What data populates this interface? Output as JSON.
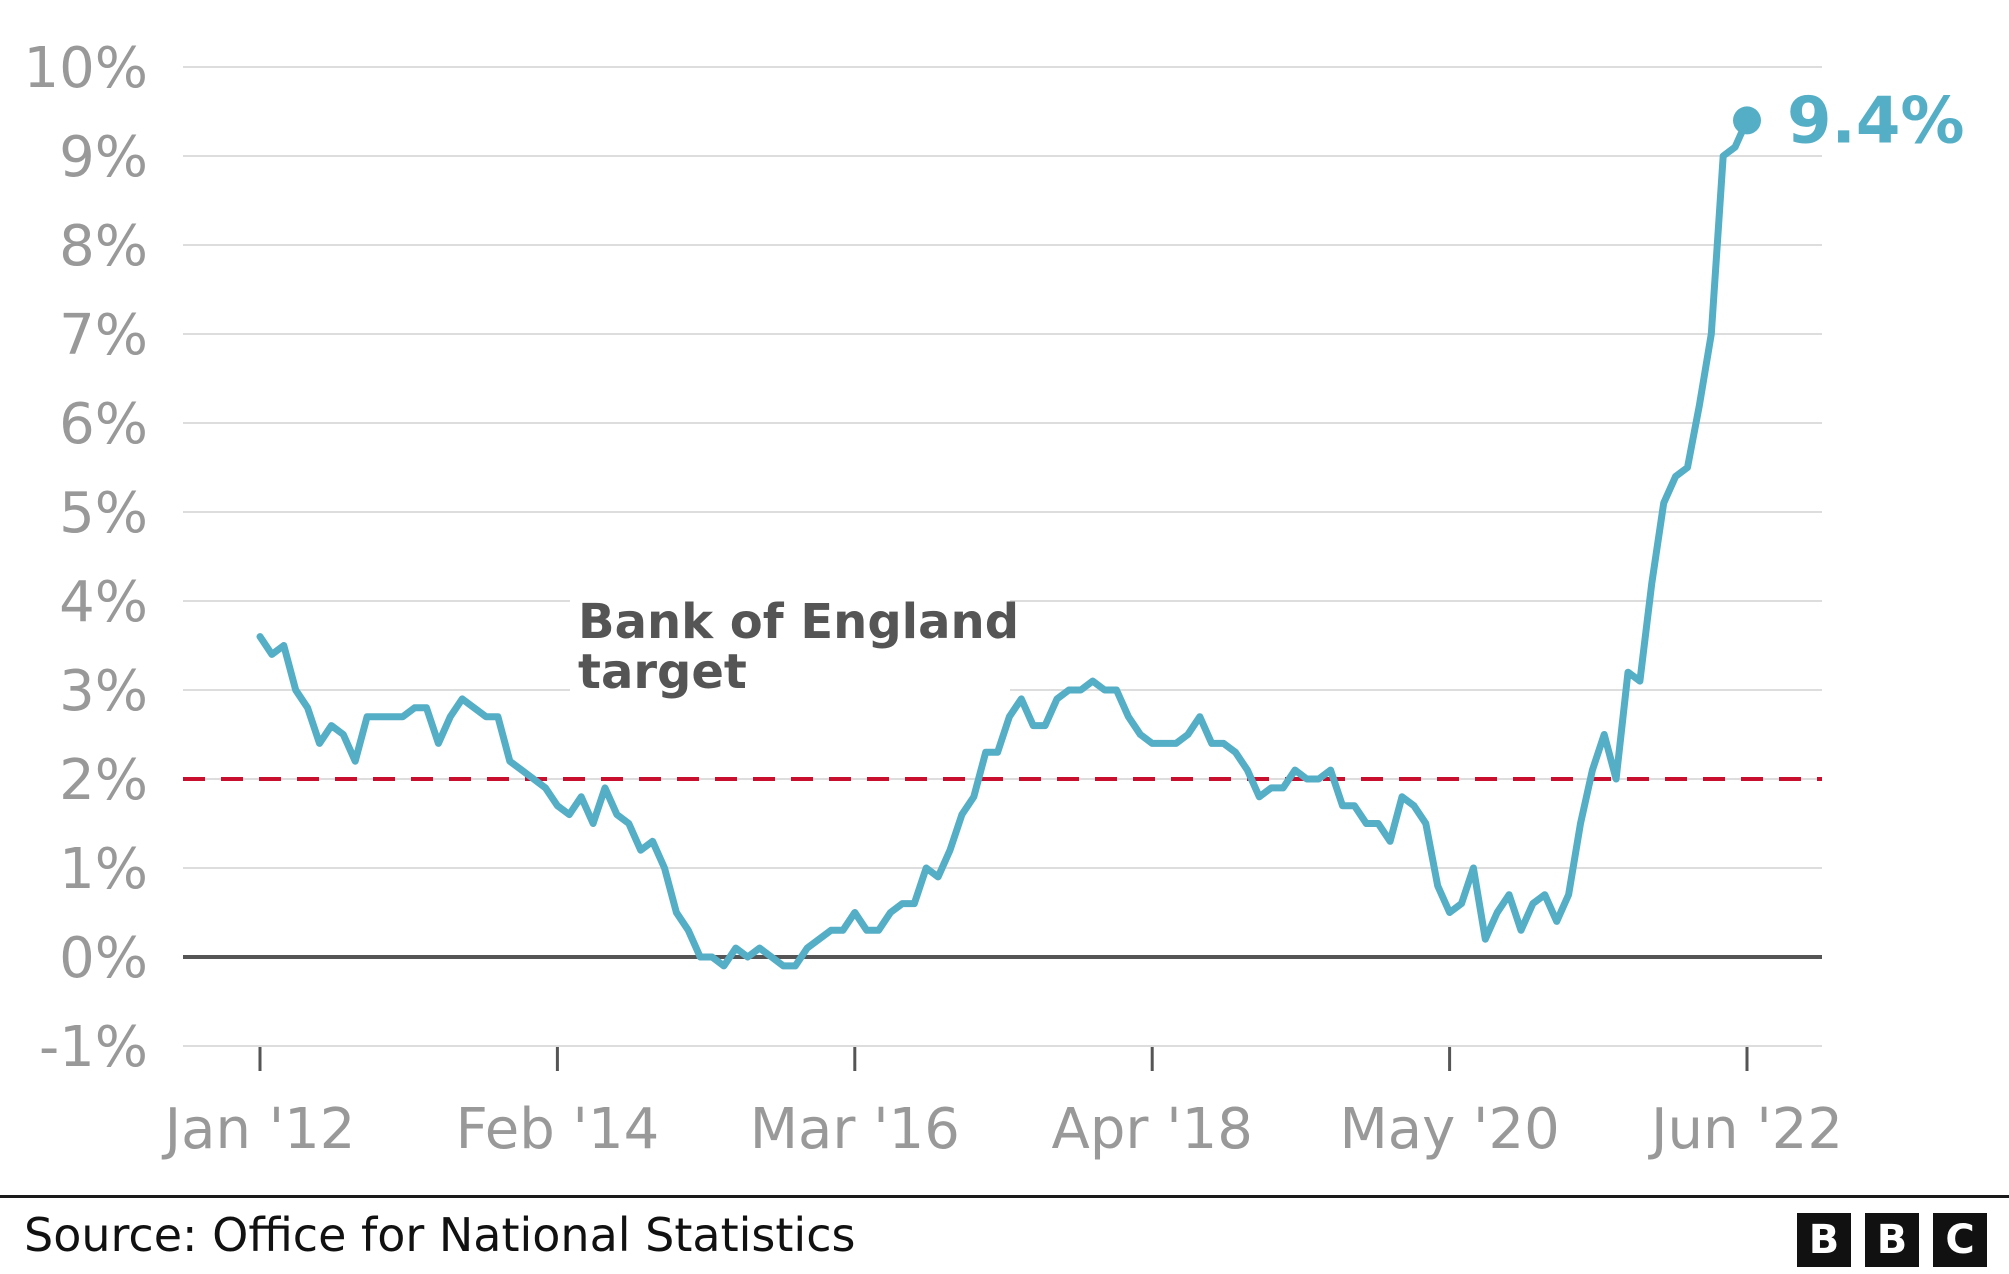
{
  "chart_data": {
    "type": "line",
    "title": "",
    "xlabel": "",
    "ylabel": "",
    "ylim": [
      -1,
      10
    ],
    "y_ticks": [
      "10%",
      "9%",
      "8%",
      "7%",
      "6%",
      "5%",
      "4%",
      "3%",
      "2%",
      "1%",
      "0%",
      "-1%"
    ],
    "y_tick_values": [
      10,
      9,
      8,
      7,
      6,
      5,
      4,
      3,
      2,
      1,
      0,
      -1
    ],
    "x_ticks": [
      "Jan '12",
      "Feb '14",
      "Mar '16",
      "Apr '18",
      "May '20",
      "Jun '22"
    ],
    "x_tick_dates": [
      "2012-01",
      "2014-02",
      "2016-03",
      "2018-04",
      "2020-05",
      "2022-06"
    ],
    "grid": true,
    "target": {
      "label_line1": "Bank of England",
      "label_line2": "target",
      "value": 2,
      "color": "#c8102e"
    },
    "end_label": "9.4%",
    "series_color": "#54aec6",
    "series": [
      {
        "x": [
          "2012-01",
          "2012-02",
          "2012-03",
          "2012-04",
          "2012-05",
          "2012-06",
          "2012-07",
          "2012-08",
          "2012-09",
          "2012-10",
          "2012-11",
          "2012-12",
          "2013-01",
          "2013-02",
          "2013-03",
          "2013-04",
          "2013-05",
          "2013-06",
          "2013-07",
          "2013-08",
          "2013-09",
          "2013-10",
          "2013-11",
          "2013-12",
          "2014-01",
          "2014-02",
          "2014-03",
          "2014-04",
          "2014-05",
          "2014-06",
          "2014-07",
          "2014-08",
          "2014-09",
          "2014-10",
          "2014-11",
          "2014-12",
          "2015-01",
          "2015-02",
          "2015-03",
          "2015-04",
          "2015-05",
          "2015-06",
          "2015-07",
          "2015-08",
          "2015-09",
          "2015-10",
          "2015-11",
          "2015-12",
          "2016-01",
          "2016-02",
          "2016-03",
          "2016-04",
          "2016-05",
          "2016-06",
          "2016-07",
          "2016-08",
          "2016-09",
          "2016-10",
          "2016-11",
          "2016-12",
          "2017-01",
          "2017-02",
          "2017-03",
          "2017-04",
          "2017-05",
          "2017-06",
          "2017-07",
          "2017-08",
          "2017-09",
          "2017-10",
          "2017-11",
          "2017-12",
          "2018-01",
          "2018-02",
          "2018-03",
          "2018-04",
          "2018-05",
          "2018-06",
          "2018-07",
          "2018-08",
          "2018-09",
          "2018-10",
          "2018-11",
          "2018-12",
          "2019-01",
          "2019-02",
          "2019-03",
          "2019-04",
          "2019-05",
          "2019-06",
          "2019-07",
          "2019-08",
          "2019-09",
          "2019-10",
          "2019-11",
          "2019-12",
          "2020-01",
          "2020-02",
          "2020-03",
          "2020-04",
          "2020-05",
          "2020-06",
          "2020-07",
          "2020-08",
          "2020-09",
          "2020-10",
          "2020-11",
          "2020-12",
          "2021-01",
          "2021-02",
          "2021-03",
          "2021-04",
          "2021-05",
          "2021-06",
          "2021-07",
          "2021-08",
          "2021-09",
          "2021-10",
          "2021-11",
          "2021-12",
          "2022-01",
          "2022-02",
          "2022-03",
          "2022-04",
          "2022-05",
          "2022-06"
        ],
        "values": [
          3.6,
          3.4,
          3.5,
          3.0,
          2.8,
          2.4,
          2.6,
          2.5,
          2.2,
          2.7,
          2.7,
          2.7,
          2.7,
          2.8,
          2.8,
          2.4,
          2.7,
          2.9,
          2.8,
          2.7,
          2.7,
          2.2,
          2.1,
          2.0,
          1.9,
          1.7,
          1.6,
          1.8,
          1.5,
          1.9,
          1.6,
          1.5,
          1.2,
          1.3,
          1.0,
          0.5,
          0.3,
          0.0,
          0.0,
          -0.1,
          0.1,
          0.0,
          0.1,
          0.0,
          -0.1,
          -0.1,
          0.1,
          0.2,
          0.3,
          0.3,
          0.5,
          0.3,
          0.3,
          0.5,
          0.6,
          0.6,
          1.0,
          0.9,
          1.2,
          1.6,
          1.8,
          2.3,
          2.3,
          2.7,
          2.9,
          2.6,
          2.6,
          2.9,
          3.0,
          3.0,
          3.1,
          3.0,
          3.0,
          2.7,
          2.5,
          2.4,
          2.4,
          2.4,
          2.5,
          2.7,
          2.4,
          2.4,
          2.3,
          2.1,
          1.8,
          1.9,
          1.9,
          2.1,
          2.0,
          2.0,
          2.1,
          1.7,
          1.7,
          1.5,
          1.5,
          1.3,
          1.8,
          1.7,
          1.5,
          0.8,
          0.5,
          0.6,
          1.0,
          0.2,
          0.5,
          0.7,
          0.3,
          0.6,
          0.7,
          0.4,
          0.7,
          1.5,
          2.1,
          2.5,
          2.0,
          3.2,
          3.1,
          4.2,
          5.1,
          5.4,
          5.5,
          6.2,
          7.0,
          9.0,
          9.1,
          9.4
        ]
      }
    ]
  },
  "footer": {
    "source": "Source: Office for National Statistics"
  },
  "logo": {
    "letters": [
      "B",
      "B",
      "C"
    ]
  }
}
